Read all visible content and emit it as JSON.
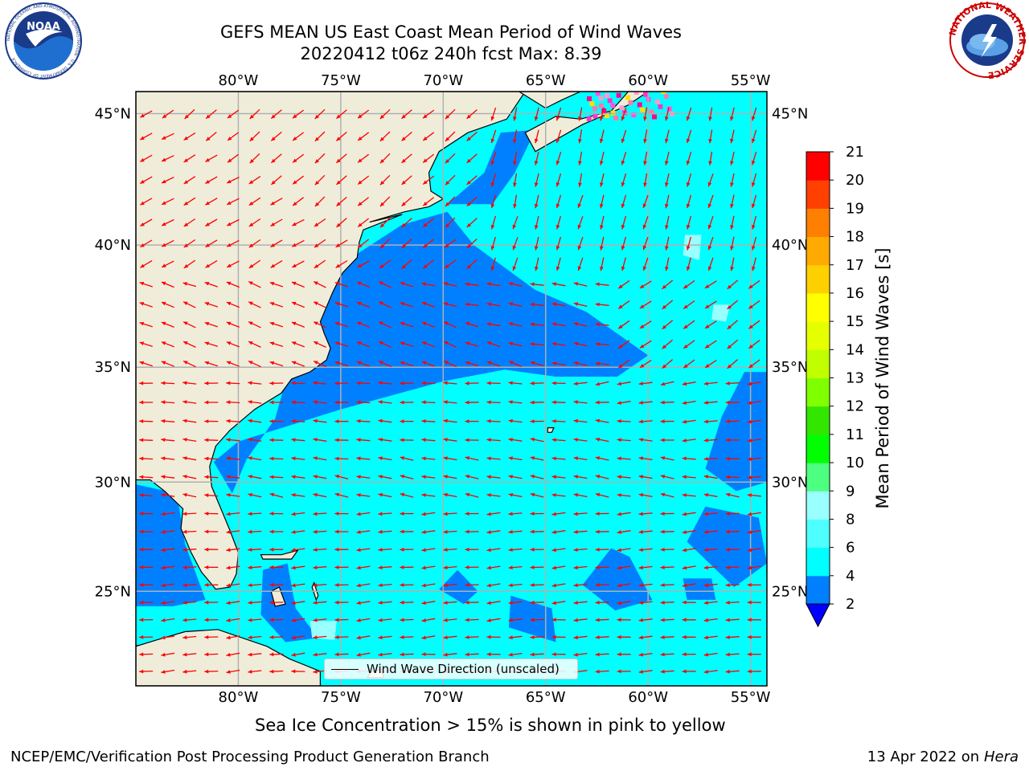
{
  "header": {
    "title_line1": "GEFS MEAN US East Coast Mean Period of Wind Waves",
    "title_line2": "20220412 t06z 240h fcst   Max: 8.39"
  },
  "logos": {
    "left": {
      "name": "NOAA",
      "ring_text": "NATIONAL OCEANIC AND ATMOSPHERIC ADMINISTRATION · U.S. DEPARTMENT OF COMMERCE"
    },
    "right": {
      "name": "NATIONAL WEATHER SERVICE"
    }
  },
  "map": {
    "lon_labels": [
      "80°W",
      "75°W",
      "70°W",
      "65°W",
      "60°W",
      "55°W"
    ],
    "lat_labels": [
      "45°N",
      "40°N",
      "35°N",
      "30°N",
      "25°N"
    ],
    "lon_values": [
      -80,
      -75,
      -70,
      -65,
      -60,
      -55
    ],
    "lat_values": [
      45,
      40,
      35,
      30,
      25
    ],
    "extent": {
      "lon_min": -85,
      "lon_max": -54.2,
      "lat_min": 20.5,
      "lat_max": 45.8
    },
    "colors": {
      "land": "#efedda",
      "ocean_low": "#0080ff",
      "ocean_mid": "#00ffff",
      "ocean_high": "#99ffff",
      "arrow": "#ff0000",
      "grid": "#b0b0b0",
      "coast": "#000000"
    },
    "legend_text": "Wind Wave Direction (unscaled)"
  },
  "colorbar": {
    "label": "Mean Period of Wind Waves [s]",
    "ticks": [
      "2",
      "4",
      "6",
      "8",
      "9",
      "10",
      "11",
      "12",
      "13",
      "14",
      "15",
      "16",
      "17",
      "18",
      "19",
      "20",
      "21"
    ],
    "colors": [
      "#0080ff",
      "#00ffff",
      "#4dffff",
      "#99ffff",
      "#4dff80",
      "#00ff00",
      "#33e600",
      "#80ff00",
      "#bfff00",
      "#e6ff00",
      "#ffff00",
      "#ffd000",
      "#ffaa00",
      "#ff8000",
      "#ff4000",
      "#ff0000"
    ],
    "under_color": "#0000ff"
  },
  "footer": {
    "note": "Sea Ice Concentration > 15% is shown in pink to yellow",
    "left": "NCEP/EMC/Verification Post Processing Product Generation Branch",
    "date": "13 Apr 2022 on ",
    "machine": "Hera"
  }
}
